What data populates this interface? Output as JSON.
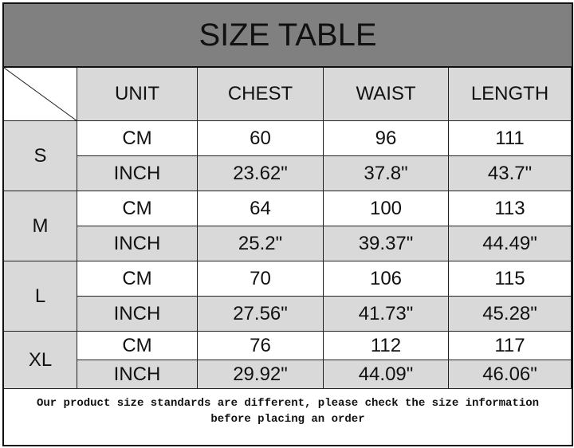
{
  "title": "SIZE TABLE",
  "columns": [
    "UNIT",
    "CHEST",
    "WAIST",
    "LENGTH"
  ],
  "sizes": [
    {
      "size": "S",
      "rows": [
        [
          "CM",
          "60",
          "96",
          "111"
        ],
        [
          "INCH",
          "23.62\"",
          "37.8\"",
          "43.7\""
        ]
      ]
    },
    {
      "size": "M",
      "rows": [
        [
          "CM",
          "64",
          "100",
          "113"
        ],
        [
          "INCH",
          "25.2\"",
          "39.37\"",
          "44.49\""
        ]
      ]
    },
    {
      "size": "L",
      "rows": [
        [
          "CM",
          "70",
          "106",
          "115"
        ],
        [
          "INCH",
          "27.56\"",
          "41.73\"",
          "45.28\""
        ]
      ]
    },
    {
      "size": "XL",
      "rows": [
        [
          "CM",
          "76",
          "112",
          "117"
        ],
        [
          "INCH",
          "29.92\"",
          "44.09\"",
          "46.06\""
        ]
      ]
    }
  ],
  "note": {
    "line1": "Our product size standards are different, please check the size information",
    "line2": "before placing an order"
  },
  "colors": {
    "title_bg": "#808080",
    "header_bg": "#d9d9d9",
    "inch_row_bg": "#d9d9d9",
    "cm_row_bg": "#ffffff"
  }
}
